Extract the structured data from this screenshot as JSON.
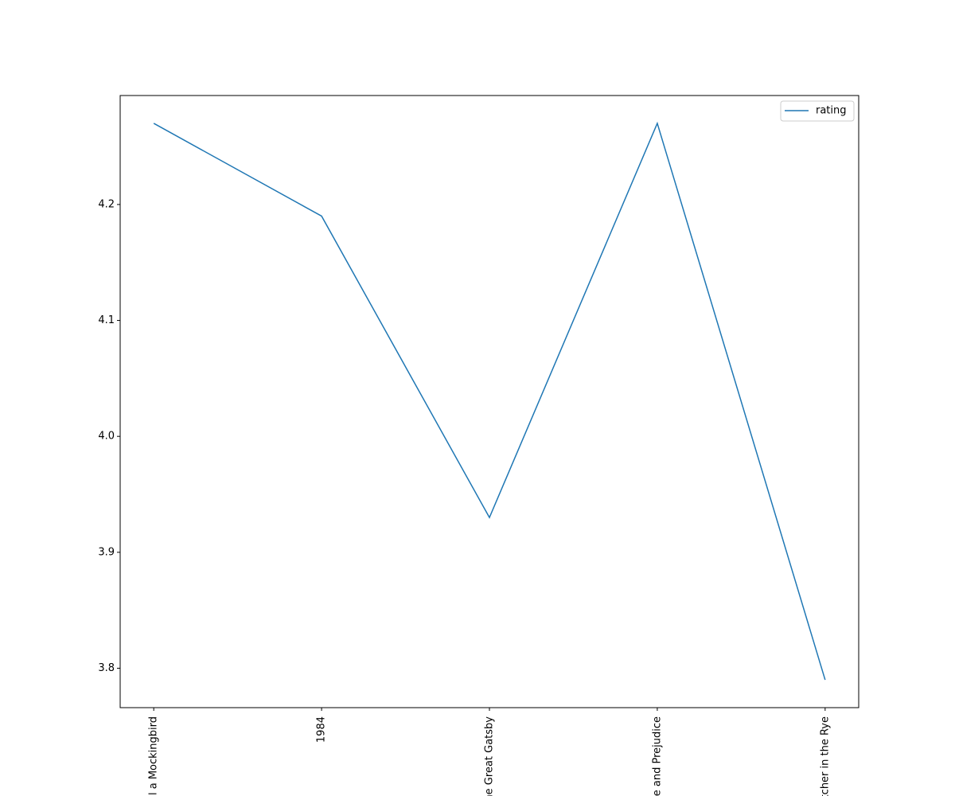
{
  "chart_data": {
    "type": "line",
    "categories": [
      "To Kill a Mockingbird",
      "1984",
      "The Great Gatsby",
      "Pride and Prejudice",
      "The Catcher in the Rye"
    ],
    "series": [
      {
        "name": "rating",
        "color": "#1f77b4",
        "values": [
          4.27,
          4.19,
          3.93,
          4.27,
          3.79
        ]
      }
    ],
    "ylim": [
      3.766,
      4.294
    ],
    "yticks": [
      3.8,
      3.9,
      {
        "value": 4,
        "label": "4.0"
      },
      4.1,
      4.2
    ],
    "legend": "upper right"
  }
}
